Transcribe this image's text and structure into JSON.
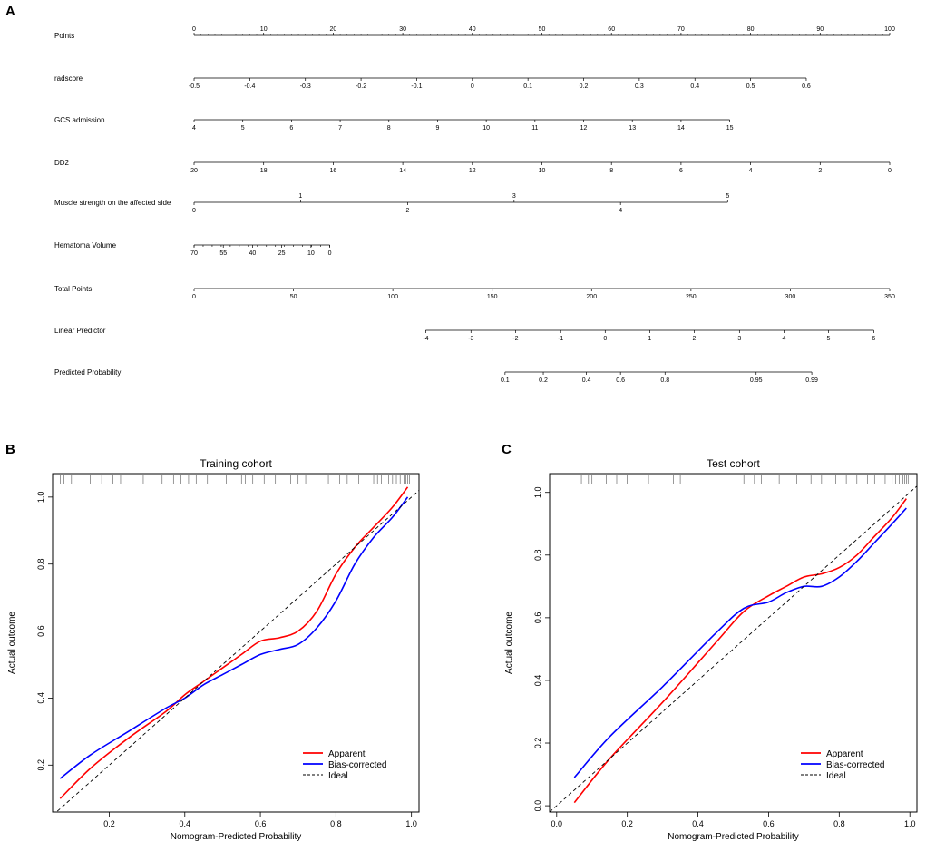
{
  "panel_labels": {
    "a": "A",
    "b": "B",
    "c": "C"
  },
  "chart_data": [
    {
      "type": "nomogram",
      "panel": "A",
      "rows": [
        {
          "label": "Points",
          "ticks": [
            {
              "v": 0,
              "t": "0"
            },
            {
              "v": 10,
              "t": "10"
            },
            {
              "v": 20,
              "t": "20"
            },
            {
              "v": 30,
              "t": "30"
            },
            {
              "v": 40,
              "t": "40"
            },
            {
              "v": 50,
              "t": "50"
            },
            {
              "v": 60,
              "t": "60"
            },
            {
              "v": 70,
              "t": "70"
            },
            {
              "v": 80,
              "t": "80"
            },
            {
              "v": 90,
              "t": "90"
            },
            {
              "v": 100,
              "t": "100"
            }
          ]
        },
        {
          "label": "radscore",
          "ticks": [
            {
              "v": 0,
              "t": "-0.5"
            },
            {
              "v": 8,
              "t": "-0.4"
            },
            {
              "v": 16,
              "t": "-0.3"
            },
            {
              "v": 24,
              "t": "-0.2"
            },
            {
              "v": 32,
              "t": "-0.1"
            },
            {
              "v": 40,
              "t": "0"
            },
            {
              "v": 48,
              "t": "0.1"
            },
            {
              "v": 56,
              "t": "0.2"
            },
            {
              "v": 64,
              "t": "0.3"
            },
            {
              "v": 72,
              "t": "0.4"
            },
            {
              "v": 80,
              "t": "0.5"
            },
            {
              "v": 88,
              "t": "0.6"
            }
          ]
        },
        {
          "label": "GCS admission",
          "ticks": [
            {
              "v": 0,
              "t": "4"
            },
            {
              "v": 7,
              "t": "5"
            },
            {
              "v": 14,
              "t": "6"
            },
            {
              "v": 21,
              "t": "7"
            },
            {
              "v": 28,
              "t": "8"
            },
            {
              "v": 35,
              "t": "9"
            },
            {
              "v": 42,
              "t": "10"
            },
            {
              "v": 49,
              "t": "11"
            },
            {
              "v": 56,
              "t": "12"
            },
            {
              "v": 63,
              "t": "13"
            },
            {
              "v": 70,
              "t": "14"
            },
            {
              "v": 77,
              "t": "15"
            }
          ]
        },
        {
          "label": "DD2",
          "ticks": [
            {
              "v": 0,
              "t": "20"
            },
            {
              "v": 10,
              "t": "18"
            },
            {
              "v": 20,
              "t": "16"
            },
            {
              "v": 30,
              "t": "14"
            },
            {
              "v": 40,
              "t": "12"
            },
            {
              "v": 50,
              "t": "10"
            },
            {
              "v": 60,
              "t": "8"
            },
            {
              "v": 70,
              "t": "6"
            },
            {
              "v": 80,
              "t": "4"
            },
            {
              "v": 90,
              "t": "2"
            },
            {
              "v": 100,
              "t": "0"
            }
          ]
        },
        {
          "label": "Muscle strength on the affected side",
          "ticks_above": [
            {
              "v": 15.3,
              "t": "1"
            },
            {
              "v": 46,
              "t": "3"
            },
            {
              "v": 76.7,
              "t": "5"
            }
          ],
          "ticks": [
            {
              "v": 0,
              "t": "0"
            },
            {
              "v": 30.7,
              "t": "2"
            },
            {
              "v": 61.3,
              "t": "4"
            }
          ]
        },
        {
          "label": "Hematoma Volume",
          "end": 19.5,
          "minor": [
            0,
            1.3,
            2.6,
            3.9,
            5.2,
            6.5,
            7.8,
            9.1,
            10.4,
            11.7,
            13,
            14.3,
            15.6,
            16.9,
            18.2,
            19.5
          ],
          "ticks": [
            {
              "v": 0,
              "t": "70"
            },
            {
              "v": 4.2,
              "t": "55"
            },
            {
              "v": 8.4,
              "t": "40"
            },
            {
              "v": 12.6,
              "t": "25"
            },
            {
              "v": 16.8,
              "t": "10"
            },
            {
              "v": 19.5,
              "t": "0"
            }
          ]
        },
        {
          "label": "Total Points",
          "ticks": [
            {
              "v": 0,
              "t": "0"
            },
            {
              "v": 14.29,
              "t": "50"
            },
            {
              "v": 28.57,
              "t": "100"
            },
            {
              "v": 42.86,
              "t": "150"
            },
            {
              "v": 57.14,
              "t": "200"
            },
            {
              "v": 71.43,
              "t": "250"
            },
            {
              "v": 85.71,
              "t": "300"
            },
            {
              "v": 100,
              "t": "350"
            }
          ]
        },
        {
          "label": "Linear Predictor",
          "ticks": [
            {
              "v": 33.3,
              "t": "-4"
            },
            {
              "v": 39.8,
              "t": "-3"
            },
            {
              "v": 46.2,
              "t": "-2"
            },
            {
              "v": 52.7,
              "t": "-1"
            },
            {
              "v": 59.1,
              "t": "0"
            },
            {
              "v": 65.5,
              "t": "1"
            },
            {
              "v": 71.9,
              "t": "2"
            },
            {
              "v": 78.4,
              "t": "3"
            },
            {
              "v": 84.8,
              "t": "4"
            },
            {
              "v": 91.2,
              "t": "5"
            },
            {
              "v": 97.7,
              "t": "6"
            }
          ]
        },
        {
          "label": "Predicted Probability",
          "ticks": [
            {
              "v": 44.7,
              "t": "0.1"
            },
            {
              "v": 50.2,
              "t": "0.2"
            },
            {
              "v": 56.4,
              "t": "0.4"
            },
            {
              "v": 61.3,
              "t": "0.6"
            },
            {
              "v": 67.7,
              "t": "0.8"
            },
            {
              "v": 80.8,
              "t": "0.95"
            },
            {
              "v": 88.8,
              "t": "0.99"
            }
          ]
        }
      ]
    },
    {
      "type": "line",
      "panel": "B",
      "title": "Training cohort",
      "xlabel": "Nomogram-Predicted Probability",
      "ylabel": "Actual outcome",
      "xlim": [
        0.05,
        1.02
      ],
      "ylim": [
        0.06,
        1.07
      ],
      "xticks": [
        {
          "v": 0.2,
          "t": "0.2"
        },
        {
          "v": 0.4,
          "t": "0.4"
        },
        {
          "v": 0.6,
          "t": "0.6"
        },
        {
          "v": 0.8,
          "t": "0.8"
        },
        {
          "v": 1.0,
          "t": "1.0"
        }
      ],
      "yticks": [
        {
          "v": 0.2,
          "t": "0.2"
        },
        {
          "v": 0.4,
          "t": "0.4"
        },
        {
          "v": 0.6,
          "t": "0.6"
        },
        {
          "v": 0.8,
          "t": "0.8"
        },
        {
          "v": 1.0,
          "t": "1.0"
        }
      ],
      "rug": [
        0.07,
        0.08,
        0.1,
        0.13,
        0.15,
        0.18,
        0.21,
        0.23,
        0.26,
        0.29,
        0.31,
        0.34,
        0.37,
        0.39,
        0.41,
        0.43,
        0.46,
        0.51,
        0.55,
        0.56,
        0.58,
        0.61,
        0.62,
        0.64,
        0.68,
        0.7,
        0.72,
        0.75,
        0.78,
        0.8,
        0.81,
        0.83,
        0.86,
        0.88,
        0.9,
        0.91,
        0.92,
        0.93,
        0.94,
        0.95,
        0.96,
        0.97,
        0.98,
        0.985,
        0.99,
        0.995
      ],
      "series": [
        {
          "name": "Apparent",
          "color": "#ff0000",
          "x": [
            0.07,
            0.15,
            0.25,
            0.35,
            0.4,
            0.45,
            0.5,
            0.55,
            0.6,
            0.65,
            0.7,
            0.75,
            0.8,
            0.85,
            0.9,
            0.95,
            0.99
          ],
          "y": [
            0.1,
            0.19,
            0.28,
            0.36,
            0.41,
            0.45,
            0.49,
            0.53,
            0.57,
            0.58,
            0.6,
            0.66,
            0.77,
            0.85,
            0.91,
            0.97,
            1.03
          ]
        },
        {
          "name": "Bias-corrected",
          "color": "#0000ff",
          "x": [
            0.07,
            0.15,
            0.25,
            0.35,
            0.4,
            0.45,
            0.5,
            0.55,
            0.6,
            0.65,
            0.7,
            0.75,
            0.8,
            0.85,
            0.9,
            0.95,
            0.99
          ],
          "y": [
            0.16,
            0.23,
            0.3,
            0.37,
            0.4,
            0.44,
            0.47,
            0.5,
            0.53,
            0.545,
            0.56,
            0.61,
            0.69,
            0.8,
            0.88,
            0.94,
            1.0
          ]
        },
        {
          "name": "Ideal",
          "color": "#000000",
          "dash": true,
          "x": [
            0.05,
            1.02
          ],
          "y": [
            0.05,
            1.02
          ]
        }
      ],
      "legend": {
        "position": "bottom-right",
        "entries": [
          "Apparent",
          "Bias-corrected",
          "Ideal"
        ]
      }
    },
    {
      "type": "line",
      "panel": "C",
      "title": "Test cohort",
      "xlabel": "Nomogram-Predicted Probability",
      "ylabel": "Actual outcome",
      "xlim": [
        -0.02,
        1.02
      ],
      "ylim": [
        -0.02,
        1.06
      ],
      "xticks": [
        {
          "v": 0.0,
          "t": "0.0"
        },
        {
          "v": 0.2,
          "t": "0.2"
        },
        {
          "v": 0.4,
          "t": "0.4"
        },
        {
          "v": 0.6,
          "t": "0.6"
        },
        {
          "v": 0.8,
          "t": "0.8"
        },
        {
          "v": 1.0,
          "t": "1.0"
        }
      ],
      "yticks": [
        {
          "v": 0.0,
          "t": "0.0"
        },
        {
          "v": 0.2,
          "t": "0.2"
        },
        {
          "v": 0.4,
          "t": "0.4"
        },
        {
          "v": 0.6,
          "t": "0.6"
        },
        {
          "v": 0.8,
          "t": "0.8"
        },
        {
          "v": 1.0,
          "t": "1.0"
        }
      ],
      "rug": [
        0.07,
        0.09,
        0.1,
        0.14,
        0.17,
        0.2,
        0.26,
        0.33,
        0.35,
        0.53,
        0.56,
        0.58,
        0.63,
        0.68,
        0.7,
        0.72,
        0.75,
        0.79,
        0.82,
        0.85,
        0.88,
        0.9,
        0.93,
        0.95,
        0.96,
        0.97,
        0.98,
        0.985,
        0.99,
        0.995
      ],
      "series": [
        {
          "name": "Apparent",
          "color": "#ff0000",
          "x": [
            0.05,
            0.15,
            0.3,
            0.45,
            0.53,
            0.6,
            0.65,
            0.7,
            0.75,
            0.8,
            0.85,
            0.9,
            0.95,
            0.99
          ],
          "y": [
            0.01,
            0.15,
            0.33,
            0.52,
            0.62,
            0.67,
            0.7,
            0.73,
            0.74,
            0.76,
            0.8,
            0.86,
            0.92,
            0.98
          ]
        },
        {
          "name": "Bias-corrected",
          "color": "#0000ff",
          "x": [
            0.05,
            0.15,
            0.3,
            0.45,
            0.53,
            0.6,
            0.65,
            0.7,
            0.75,
            0.8,
            0.85,
            0.9,
            0.95,
            0.99
          ],
          "y": [
            0.09,
            0.22,
            0.38,
            0.55,
            0.63,
            0.65,
            0.68,
            0.7,
            0.7,
            0.73,
            0.78,
            0.84,
            0.9,
            0.95
          ]
        },
        {
          "name": "Ideal",
          "color": "#000000",
          "dash": true,
          "x": [
            -0.02,
            1.02
          ],
          "y": [
            -0.02,
            1.02
          ]
        }
      ],
      "legend": {
        "position": "bottom-right",
        "entries": [
          "Apparent",
          "Bias-corrected",
          "Ideal"
        ]
      }
    }
  ]
}
